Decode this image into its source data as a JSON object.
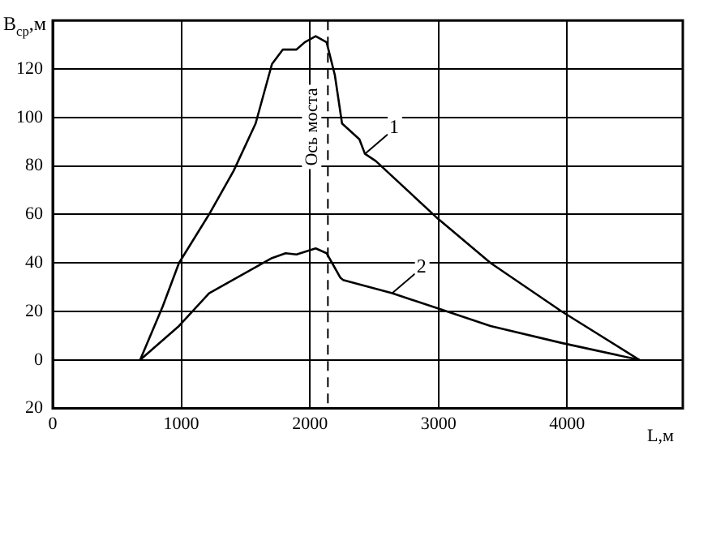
{
  "chart_data": {
    "type": "line",
    "xlabel": "L,м",
    "ylabel": "B$_{ср}$,м",
    "xlim": [
      0,
      4900
    ],
    "xticks": [
      0,
      1000,
      2000,
      3000,
      4000
    ],
    "ylim": [
      -20,
      140
    ],
    "yticks": [
      {
        "value": -20,
        "label": "20"
      },
      0,
      20,
      40,
      60,
      80,
      100,
      120
    ],
    "grid": true,
    "legend": false,
    "marker": "none",
    "line_style": "solid",
    "ref_lines": [
      {
        "axis": "x",
        "value": 2140,
        "label": "Ось моста",
        "line_style": "dashed",
        "color": "#000000"
      }
    ],
    "series": [
      {
        "name": "1",
        "color": "#000000",
        "x": [
          680,
          855,
          982,
          1216,
          1407,
          1578,
          1705,
          1790,
          1896,
          1960,
          2045,
          2130,
          2194,
          2250,
          2385,
          2428,
          2513,
          2980,
          3405,
          3958,
          4563
        ],
        "values": [
          0,
          22,
          40,
          60,
          78,
          97.5,
          122,
          128,
          128,
          131,
          133.5,
          131,
          117.5,
          97.5,
          91,
          85,
          82,
          59,
          40,
          20,
          0
        ]
      },
      {
        "name": "2",
        "color": "#000000",
        "x": [
          680,
          982,
          1216,
          1705,
          1811,
          1896,
          2045,
          2130,
          2236,
          2258,
          2640,
          3010,
          3405,
          3958,
          4563
        ],
        "values": [
          0,
          14,
          27.5,
          42,
          44,
          43.5,
          46,
          44,
          34,
          33,
          27.5,
          21,
          14,
          7,
          0
        ]
      }
    ]
  }
}
